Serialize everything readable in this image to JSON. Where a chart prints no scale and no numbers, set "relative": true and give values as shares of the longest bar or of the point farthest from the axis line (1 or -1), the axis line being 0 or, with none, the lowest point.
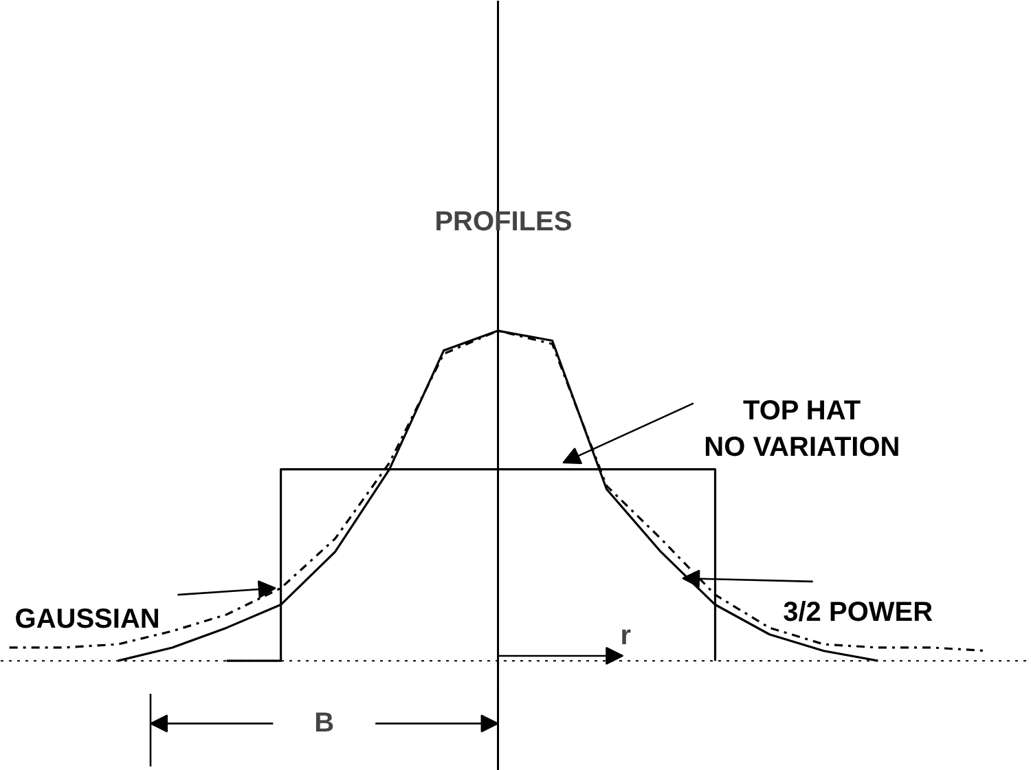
{
  "chart_data": {
    "type": "line",
    "title": "PROFILES",
    "relative": true,
    "categories": [
      null,
      null,
      null,
      null,
      null,
      null,
      null,
      null,
      null,
      null,
      null,
      null,
      null,
      null,
      null,
      null,
      null,
      null,
      null
    ],
    "series": [
      {
        "name": "GAUSSIAN",
        "color": "#000000",
        "line_style": "dashed",
        "values": [
          0.04,
          0.04,
          0.05,
          0.09,
          0.14,
          0.22,
          0.37,
          0.6,
          0.93,
          1,
          0.96,
          0.53,
          0.37,
          0.2,
          0.1,
          0.05,
          0.04,
          0.04,
          0.03
        ]
      },
      {
        "name": "3/2 POWER",
        "color": "#000000",
        "line_style": "solid",
        "values": [
          null,
          null,
          0,
          0.04,
          0.1,
          0.17,
          0.33,
          0.58,
          0.94,
          1,
          0.97,
          0.52,
          0.33,
          0.17,
          0.08,
          0.03,
          0,
          null,
          null
        ]
      },
      {
        "name": "TOP HAT\nNO VARIATION",
        "type": "step",
        "color": "#000000",
        "line_style": "solid",
        "values": [
          null,
          null,
          null,
          null,
          0,
          0.58,
          0.58,
          0.58,
          0.58,
          0.58,
          0.58,
          0.58,
          0.58,
          0,
          null,
          null,
          null,
          null,
          null
        ]
      }
    ],
    "annotations": [
      "B",
      "r"
    ],
    "grid": false,
    "legend": false,
    "tick_labels": false
  }
}
